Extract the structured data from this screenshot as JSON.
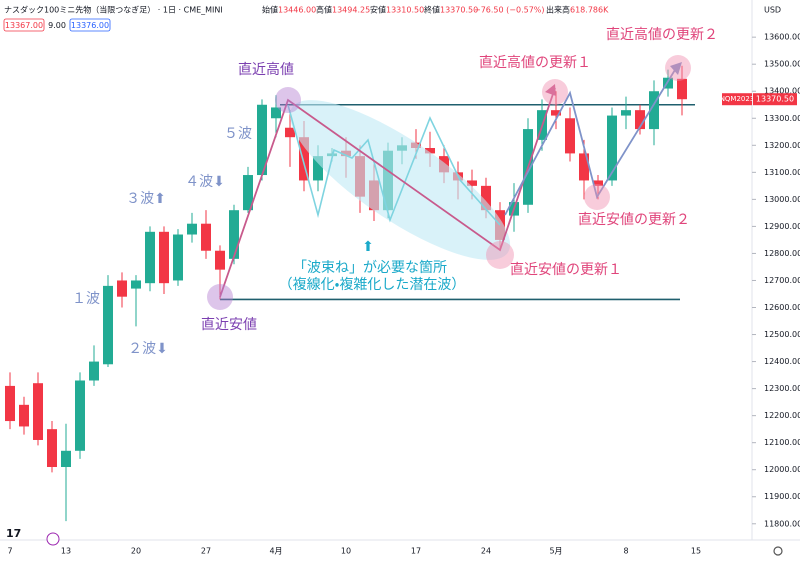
{
  "header": {
    "title": "ナスダック100ミニ先物（当限つなぎ足） · 1日 · CME_MINI",
    "ohlc": [
      {
        "label": "始値",
        "value": "13446.00"
      },
      {
        "label": "高値",
        "value": "13494.25"
      },
      {
        "label": "安値",
        "value": "13310.50"
      },
      {
        "label": "終値",
        "value": "13370.50"
      }
    ],
    "change": "−76.50 (−0.57%)",
    "volume_label": "出来高",
    "volume": "618.786K",
    "bid": "13367.00",
    "spread": "9.00",
    "ask": "13376.00",
    "currency": "USD",
    "symbol_tag": "NQM2023",
    "price_tag": "13370.50",
    "logo": "17"
  },
  "chart_data": {
    "type": "candlestick",
    "categories": [
      "7",
      null,
      null,
      null,
      "13",
      null,
      null,
      null,
      null,
      "20",
      null,
      null,
      null,
      null,
      "27",
      null,
      null,
      null,
      null,
      "4月",
      null,
      null,
      null,
      null,
      "10",
      null,
      null,
      null,
      null,
      "17",
      null,
      null,
      null,
      null,
      "24",
      null,
      null,
      null,
      null,
      "5月",
      null,
      null,
      null,
      null,
      "8",
      null,
      null,
      null,
      null,
      "15"
    ],
    "open": [
      12310,
      12240,
      12320,
      12150,
      12010,
      12070,
      12330,
      12390,
      12700,
      12670,
      12690,
      12880,
      12700,
      12870,
      12910,
      12810,
      12780,
      12960,
      13090,
      13300,
      13265,
      13230,
      13070,
      13160,
      13180,
      13160,
      13070,
      12960,
      13180,
      13210,
      13190,
      13160,
      13100,
      13070,
      13050,
      12960,
      12940,
      12980,
      13220,
      13330,
      13300,
      13170,
      13070,
      13070,
      13310,
      13330,
      13260,
      13410,
      13446,
      null
    ],
    "high": [
      12360,
      12270,
      12360,
      12180,
      12170,
      12360,
      12460,
      12720,
      12730,
      12720,
      12900,
      12900,
      12890,
      12950,
      12960,
      12830,
      12980,
      13120,
      13370,
      13385,
      13330,
      13290,
      13200,
      13190,
      13230,
      13200,
      13130,
      13210,
      13230,
      13260,
      13250,
      13200,
      13140,
      13110,
      13080,
      12990,
      13060,
      13300,
      13370,
      13400,
      13340,
      13220,
      13090,
      13340,
      13380,
      13350,
      13440,
      13480,
      13494.25,
      null
    ],
    "low": [
      12150,
      12130,
      12090,
      11990,
      11810,
      12040,
      12310,
      12380,
      12600,
      12530,
      12660,
      12650,
      12680,
      12840,
      12780,
      12630,
      12760,
      12950,
      13070,
      13230,
      13120,
      13030,
      13030,
      13140,
      13080,
      12950,
      12920,
      12930,
      13130,
      13150,
      13120,
      13060,
      13000,
      13000,
      12930,
      12810,
      12880,
      12950,
      13180,
      13260,
      13140,
      13000,
      13000,
      13050,
      13260,
      13240,
      13200,
      13380,
      13310.5,
      null
    ],
    "close": [
      12180,
      12160,
      12110,
      12010,
      12070,
      12330,
      12400,
      12680,
      12640,
      12700,
      12880,
      12690,
      12870,
      12910,
      12810,
      12740,
      12960,
      13090,
      13350,
      13340,
      13230,
      13070,
      13160,
      13170,
      13160,
      13010,
      12960,
      13180,
      13200,
      13190,
      13170,
      13100,
      13070,
      13050,
      12960,
      12850,
      12990,
      13260,
      13330,
      13310,
      13170,
      13070,
      13050,
      13310,
      13330,
      13260,
      13400,
      13450,
      13370.5,
      null
    ],
    "up_color": "#22ab94",
    "down_color": "#f23645",
    "ylim": [
      11740,
      13645
    ],
    "yticks": [
      {
        "value": 11800,
        "label": "11800.00"
      },
      {
        "value": 11900,
        "label": "11900.00"
      },
      {
        "value": 12000,
        "label": "12000.00"
      },
      {
        "value": 12100,
        "label": "12100.00"
      },
      {
        "value": 12200,
        "label": "12200.00"
      },
      {
        "value": 12300,
        "label": "12300.00"
      },
      {
        "value": 12400,
        "label": "12400.00"
      },
      {
        "value": 12500,
        "label": "12500.00"
      },
      {
        "value": 12600,
        "label": "12600.00"
      },
      {
        "value": 12700,
        "label": "12700.00"
      },
      {
        "value": 12800,
        "label": "12800.00"
      },
      {
        "value": 12900,
        "label": "12900.00"
      },
      {
        "value": 13000,
        "label": "13000.00"
      },
      {
        "value": 13100,
        "label": "13100.00"
      },
      {
        "value": 13200,
        "label": "13200.00"
      },
      {
        "value": 13300,
        "label": "13300.00"
      },
      {
        "value": 13400,
        "label": "13400.00"
      },
      {
        "value": 13500,
        "label": "13500.00"
      },
      {
        "value": 13600,
        "label": "13600.00"
      }
    ],
    "hlines": [
      13350,
      12630
    ],
    "hline_color": "#1f5f6e",
    "grid": false
  },
  "annotations": {
    "recent_high": "直近高値",
    "recent_low": "直近安値",
    "wave1": "１波",
    "wave2": "２波⬇",
    "wave3": "３波⬆",
    "wave4": "４波⬇",
    "wave5": "５波",
    "arrow_up": "⬆",
    "bundle_line1": "「波束ね」が必要な箇所",
    "bundle_line2": "（複線化・複雑化した潜在波）",
    "high_update1": "直近高値の更新１",
    "high_update2": "直近高値の更新２",
    "low_update1": "直近安値の更新１",
    "low_update2": "直近安値の更新２"
  }
}
